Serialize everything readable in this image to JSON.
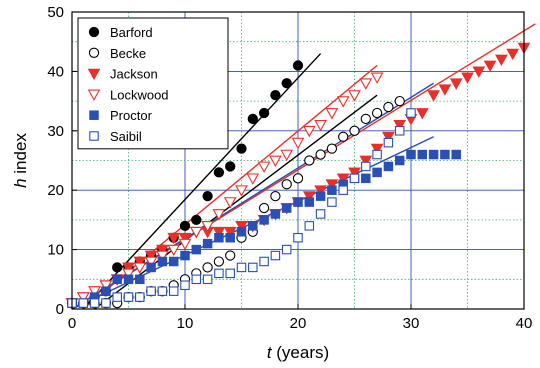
{
  "chart_data": {
    "type": "scatter",
    "xlabel_italic": "t",
    "xlabel_rest": " (years)",
    "ylabel_italic": "h",
    "ylabel_rest": " index",
    "xlim": [
      0,
      40
    ],
    "ylim": [
      0,
      50
    ],
    "xticks": [
      0,
      10,
      20,
      30,
      40
    ],
    "yticks": [
      0,
      10,
      20,
      30,
      40,
      50
    ],
    "grid": true,
    "legend_position": "top-left",
    "colors": {
      "black": "#000000",
      "red": "#e8302a",
      "blue": "#2a4fb5",
      "grid_major": "#2a4fb5",
      "grid_minor": "#3cb371"
    },
    "series": [
      {
        "name": "Barford",
        "marker": "circle-filled",
        "color": "#000000",
        "points": [
          [
            0,
            1
          ],
          [
            1,
            1
          ],
          [
            2,
            2
          ],
          [
            3,
            3
          ],
          [
            4,
            7
          ],
          [
            5,
            7
          ],
          [
            6,
            8
          ],
          [
            7,
            9
          ],
          [
            8,
            10
          ],
          [
            9,
            12
          ],
          [
            10,
            14
          ],
          [
            11,
            15
          ],
          [
            12,
            19
          ],
          [
            13,
            23
          ],
          [
            14,
            24
          ],
          [
            15,
            27
          ],
          [
            16,
            32
          ],
          [
            17,
            33
          ],
          [
            18,
            36
          ],
          [
            19,
            38
          ],
          [
            20,
            41
          ]
        ],
        "fit": [
          [
            1,
            0
          ],
          [
            22,
            43
          ]
        ]
      },
      {
        "name": "Becke",
        "marker": "circle-open",
        "color": "#000000",
        "points": [
          [
            0,
            1
          ],
          [
            1,
            1
          ],
          [
            2,
            1
          ],
          [
            3,
            1
          ],
          [
            4,
            1
          ],
          [
            5,
            2
          ],
          [
            6,
            2
          ],
          [
            7,
            3
          ],
          [
            8,
            3
          ],
          [
            9,
            4
          ],
          [
            10,
            5
          ],
          [
            11,
            6
          ],
          [
            12,
            7
          ],
          [
            13,
            8
          ],
          [
            14,
            9
          ],
          [
            15,
            12
          ],
          [
            16,
            13
          ],
          [
            17,
            17
          ],
          [
            18,
            19
          ],
          [
            19,
            21
          ],
          [
            20,
            22
          ],
          [
            21,
            25
          ],
          [
            22,
            26
          ],
          [
            23,
            27
          ],
          [
            24,
            29
          ],
          [
            25,
            30
          ],
          [
            26,
            32
          ],
          [
            27,
            33
          ],
          [
            28,
            34
          ],
          [
            29,
            35
          ]
        ],
        "fit": [
          [
            2,
            0
          ],
          [
            27,
            36
          ]
        ]
      },
      {
        "name": "Jackson",
        "marker": "triangle-filled",
        "color": "#e8302a",
        "points": [
          [
            0,
            1
          ],
          [
            1,
            2
          ],
          [
            2,
            3
          ],
          [
            3,
            4
          ],
          [
            4,
            5
          ],
          [
            5,
            7
          ],
          [
            6,
            8
          ],
          [
            7,
            9
          ],
          [
            8,
            10
          ],
          [
            9,
            12
          ],
          [
            10,
            12
          ],
          [
            11,
            13
          ],
          [
            12,
            13
          ],
          [
            13,
            13
          ],
          [
            14,
            13
          ],
          [
            15,
            14
          ],
          [
            16,
            14
          ],
          [
            17,
            15
          ],
          [
            18,
            16
          ],
          [
            19,
            17
          ],
          [
            20,
            18
          ],
          [
            21,
            19
          ],
          [
            22,
            20
          ],
          [
            23,
            21
          ],
          [
            24,
            22
          ],
          [
            25,
            23
          ],
          [
            26,
            25
          ],
          [
            27,
            27
          ],
          [
            28,
            29
          ],
          [
            29,
            31
          ],
          [
            30,
            32
          ],
          [
            31,
            33
          ],
          [
            32,
            36
          ],
          [
            33,
            37
          ],
          [
            34,
            38
          ],
          [
            35,
            39
          ],
          [
            36,
            40
          ],
          [
            37,
            41
          ],
          [
            38,
            42
          ],
          [
            39,
            43
          ],
          [
            40,
            44
          ]
        ],
        "fit": [
          [
            0,
            0
          ],
          [
            41,
            48
          ]
        ]
      },
      {
        "name": "Lockwood",
        "marker": "triangle-open",
        "color": "#e8302a",
        "points": [
          [
            0,
            1
          ],
          [
            1,
            2
          ],
          [
            2,
            3
          ],
          [
            3,
            4
          ],
          [
            4,
            5
          ],
          [
            5,
            6
          ],
          [
            6,
            7
          ],
          [
            7,
            8
          ],
          [
            8,
            9
          ],
          [
            9,
            10
          ],
          [
            10,
            11
          ],
          [
            11,
            13
          ],
          [
            12,
            14
          ],
          [
            13,
            16
          ],
          [
            14,
            18
          ],
          [
            15,
            20
          ],
          [
            16,
            22
          ],
          [
            17,
            24
          ],
          [
            18,
            25
          ],
          [
            19,
            26
          ],
          [
            20,
            28
          ],
          [
            21,
            30
          ],
          [
            22,
            31
          ],
          [
            23,
            33
          ],
          [
            24,
            35
          ],
          [
            25,
            36
          ],
          [
            26,
            38
          ],
          [
            27,
            39
          ]
        ],
        "fit": [
          [
            1,
            0
          ],
          [
            27,
            41
          ]
        ]
      },
      {
        "name": "Proctor",
        "marker": "square-filled",
        "color": "#2a4fb5",
        "points": [
          [
            0,
            1
          ],
          [
            1,
            1
          ],
          [
            2,
            2
          ],
          [
            3,
            3
          ],
          [
            4,
            5
          ],
          [
            5,
            5
          ],
          [
            6,
            5
          ],
          [
            7,
            7
          ],
          [
            8,
            8
          ],
          [
            9,
            8
          ],
          [
            10,
            9
          ],
          [
            11,
            10
          ],
          [
            12,
            11
          ],
          [
            13,
            12
          ],
          [
            14,
            12
          ],
          [
            15,
            13
          ],
          [
            16,
            14
          ],
          [
            17,
            15
          ],
          [
            18,
            16
          ],
          [
            19,
            17
          ],
          [
            20,
            18
          ],
          [
            21,
            18
          ],
          [
            22,
            19
          ],
          [
            23,
            20
          ],
          [
            24,
            21
          ],
          [
            25,
            22
          ],
          [
            26,
            22
          ],
          [
            27,
            23
          ],
          [
            28,
            24
          ],
          [
            29,
            25
          ],
          [
            30,
            26
          ],
          [
            31,
            26
          ],
          [
            32,
            26
          ],
          [
            33,
            26
          ],
          [
            34,
            26
          ]
        ],
        "fit": [
          [
            0,
            0
          ],
          [
            32,
            29
          ]
        ]
      },
      {
        "name": "Saibil",
        "marker": "square-open",
        "color": "#2a4fb5",
        "points": [
          [
            0,
            1
          ],
          [
            1,
            1
          ],
          [
            2,
            1
          ],
          [
            3,
            1
          ],
          [
            4,
            2
          ],
          [
            5,
            2
          ],
          [
            6,
            2
          ],
          [
            7,
            3
          ],
          [
            8,
            3
          ],
          [
            9,
            3
          ],
          [
            10,
            4
          ],
          [
            11,
            5
          ],
          [
            12,
            5
          ],
          [
            13,
            6
          ],
          [
            14,
            6
          ],
          [
            15,
            7
          ],
          [
            16,
            7
          ],
          [
            17,
            8
          ],
          [
            18,
            9
          ],
          [
            19,
            10
          ],
          [
            20,
            12
          ],
          [
            21,
            14
          ],
          [
            22,
            16
          ],
          [
            23,
            18
          ],
          [
            24,
            20
          ],
          [
            25,
            22
          ],
          [
            26,
            24
          ],
          [
            27,
            26
          ],
          [
            28,
            28
          ],
          [
            29,
            30
          ],
          [
            30,
            33
          ]
        ],
        "fit": [
          [
            0,
            0
          ],
          [
            32,
            38
          ]
        ]
      }
    ]
  }
}
